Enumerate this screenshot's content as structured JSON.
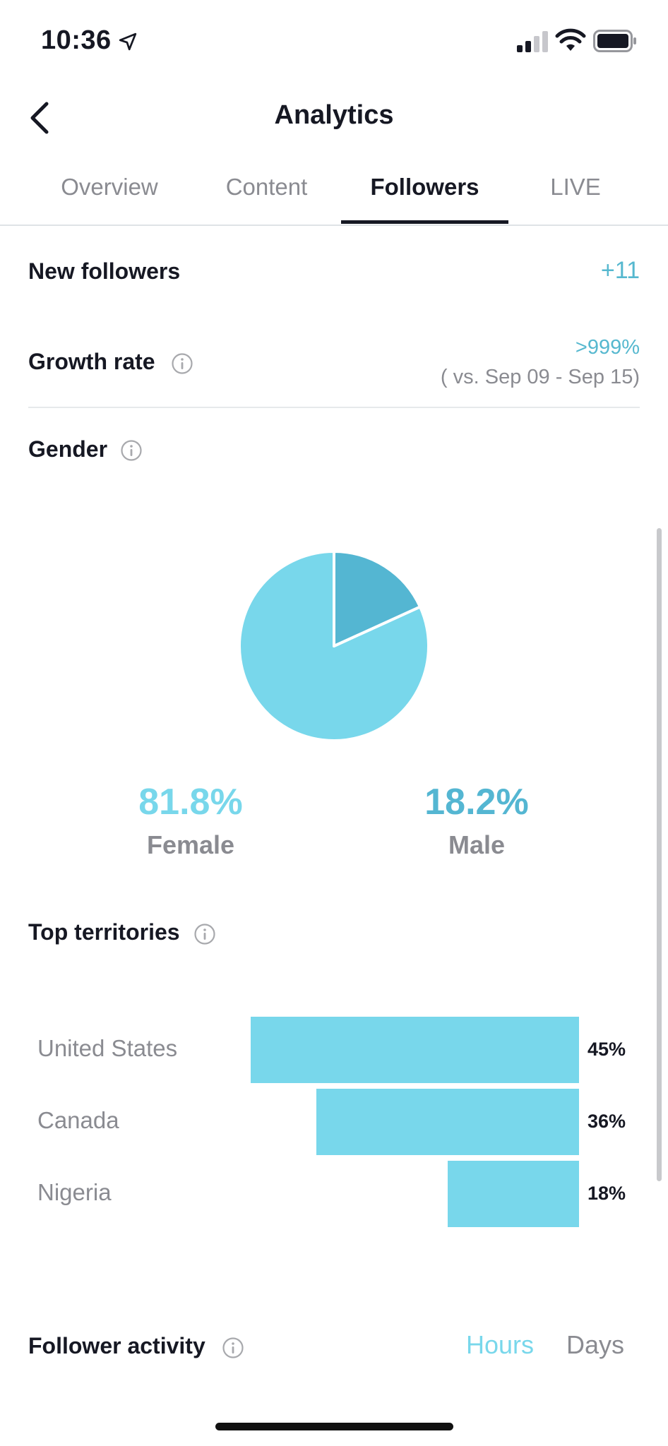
{
  "status_bar": {
    "time": "10:36"
  },
  "nav": {
    "title": "Analytics"
  },
  "tabs": [
    {
      "label": "Overview",
      "active": false
    },
    {
      "label": "Content",
      "active": false
    },
    {
      "label": "Followers",
      "active": true
    },
    {
      "label": "LIVE",
      "active": false
    }
  ],
  "new_followers": {
    "label": "New followers",
    "value": "+11"
  },
  "growth_rate": {
    "label": "Growth rate",
    "value": ">999%",
    "comparison": "( vs. Sep 09 - Sep 15)"
  },
  "gender": {
    "label": "Gender",
    "female": {
      "value": "81.8%",
      "label": "Female"
    },
    "male": {
      "value": "18.2%",
      "label": "Male"
    }
  },
  "top_territories": {
    "label": "Top territories"
  },
  "follower_activity": {
    "label": "Follower activity",
    "toggle_hours": "Hours",
    "toggle_days": "Days"
  },
  "colors": {
    "accent": "#56b8cf",
    "female": "#78d7eb",
    "male": "#54b6d2"
  },
  "chart_data": [
    {
      "type": "pie",
      "categories": [
        "Female",
        "Male"
      ],
      "values": [
        81.8,
        18.2
      ]
    },
    {
      "type": "bar",
      "orientation": "horizontal",
      "categories": [
        "United States",
        "Canada",
        "Nigeria"
      ],
      "values": [
        45,
        36,
        18
      ],
      "data_labels": [
        "45%",
        "36%",
        "18%"
      ],
      "xlim": [
        0,
        45
      ]
    }
  ]
}
